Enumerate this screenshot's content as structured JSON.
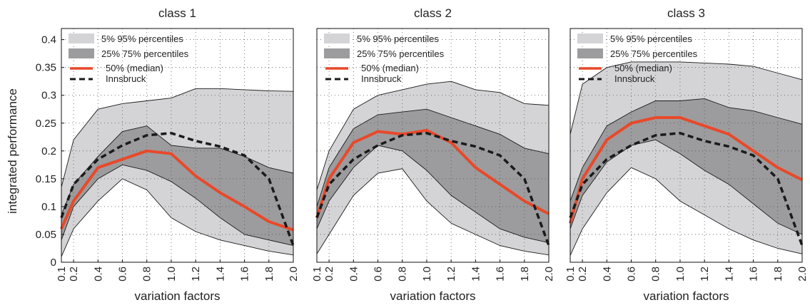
{
  "figure": {
    "ylabel": "integrated performance"
  },
  "legend": [
    {
      "label": "5% 95% percentiles",
      "swatch": "band-light"
    },
    {
      "label": "25% 75% percentiles",
      "swatch": "band-dark"
    },
    {
      "label": "50% (median)",
      "swatch": "median-line"
    },
    {
      "label": "Innsbruck",
      "swatch": "dashed-line"
    }
  ],
  "colors": {
    "band_outer": "#d4d4d6",
    "band_inner": "#9c9c9e",
    "median": "#e8492a",
    "innsbruck": "#1a1a1a",
    "grid": "#555555"
  },
  "chart_data": [
    {
      "type": "area",
      "title": "class 1",
      "xlabel": "variation factors",
      "ylabel": "integrated performance",
      "x": [
        0.1,
        0.2,
        0.4,
        0.6,
        0.8,
        1.0,
        1.2,
        1.4,
        1.6,
        1.8,
        2.0
      ],
      "xticks": [
        "0.1",
        "0.2",
        "0.4",
        "0.6",
        "0.8",
        "1.0",
        "1.2",
        "1.4",
        "1.6",
        "1.8",
        "2.0"
      ],
      "yticks": [
        "0",
        "0.05",
        "0.1",
        "0.15",
        "0.2",
        "0.25",
        "0.3",
        "0.35",
        "0.4"
      ],
      "xlim": [
        0.1,
        2.0
      ],
      "ylim": [
        0,
        0.42
      ],
      "grid": true,
      "legend_position": "top-left",
      "series": [
        {
          "name": "5% 95% percentiles",
          "lower": [
            0.01,
            0.06,
            0.11,
            0.15,
            0.13,
            0.08,
            0.055,
            0.04,
            0.03,
            0.02,
            0.013
          ],
          "upper": [
            0.135,
            0.22,
            0.275,
            0.285,
            0.29,
            0.295,
            0.312,
            0.312,
            0.31,
            0.308,
            0.307
          ]
        },
        {
          "name": "25% 75% percentiles",
          "lower": [
            0.04,
            0.1,
            0.15,
            0.175,
            0.165,
            0.145,
            0.115,
            0.08,
            0.05,
            0.04,
            0.03
          ],
          "upper": [
            0.085,
            0.14,
            0.19,
            0.235,
            0.245,
            0.21,
            0.205,
            0.205,
            0.19,
            0.17,
            0.16
          ]
        },
        {
          "name": "50% (median)",
          "values": [
            0.06,
            0.11,
            0.17,
            0.185,
            0.2,
            0.195,
            0.155,
            0.125,
            0.1,
            0.073,
            0.058
          ]
        },
        {
          "name": "Innsbruck",
          "values": [
            0.08,
            0.14,
            0.185,
            0.21,
            0.228,
            0.232,
            0.218,
            0.208,
            0.192,
            0.15,
            0.03
          ]
        }
      ]
    },
    {
      "type": "area",
      "title": "class 2",
      "xlabel": "variation factors",
      "x": [
        0.1,
        0.2,
        0.4,
        0.6,
        0.8,
        1.0,
        1.2,
        1.4,
        1.6,
        1.8,
        2.0
      ],
      "xticks": [
        "0.1",
        "0.2",
        "0.4",
        "0.6",
        "0.8",
        "1.0",
        "1.2",
        "1.4",
        "1.6",
        "1.8",
        "2.0"
      ],
      "xlim": [
        0.1,
        2.0
      ],
      "ylim": [
        0,
        0.42
      ],
      "grid": true,
      "legend_position": "top-left",
      "series": [
        {
          "name": "5% 95% percentiles",
          "lower": [
            0.015,
            0.05,
            0.12,
            0.16,
            0.168,
            0.11,
            0.07,
            0.05,
            0.03,
            0.02,
            0.013
          ],
          "upper": [
            0.13,
            0.2,
            0.275,
            0.3,
            0.31,
            0.32,
            0.325,
            0.31,
            0.305,
            0.285,
            0.282
          ]
        },
        {
          "name": "25% 75% percentiles",
          "lower": [
            0.06,
            0.11,
            0.17,
            0.21,
            0.2,
            0.165,
            0.12,
            0.09,
            0.06,
            0.045,
            0.035
          ],
          "upper": [
            0.1,
            0.17,
            0.24,
            0.265,
            0.27,
            0.275,
            0.26,
            0.245,
            0.23,
            0.205,
            0.195
          ]
        },
        {
          "name": "50% (median)",
          "values": [
            0.08,
            0.15,
            0.215,
            0.235,
            0.23,
            0.237,
            0.215,
            0.17,
            0.14,
            0.11,
            0.087
          ]
        },
        {
          "name": "Innsbruck",
          "values": [
            0.08,
            0.14,
            0.185,
            0.21,
            0.228,
            0.232,
            0.218,
            0.208,
            0.192,
            0.15,
            0.03
          ]
        }
      ]
    },
    {
      "type": "area",
      "title": "class 3",
      "xlabel": "variation factors",
      "x": [
        0.1,
        0.2,
        0.4,
        0.6,
        0.8,
        1.0,
        1.2,
        1.4,
        1.6,
        1.8,
        2.0
      ],
      "xticks": [
        "0.1",
        "0.2",
        "0.4",
        "0.6",
        "0.8",
        "1.0",
        "1.2",
        "1.4",
        "1.6",
        "1.8",
        "2.0"
      ],
      "xlim": [
        0.1,
        2.0
      ],
      "ylim": [
        0,
        0.42
      ],
      "grid": true,
      "legend_position": "top-left",
      "series": [
        {
          "name": "5% 95% percentiles",
          "lower": [
            0.012,
            0.06,
            0.125,
            0.17,
            0.15,
            0.11,
            0.085,
            0.06,
            0.04,
            0.025,
            0.015
          ],
          "upper": [
            0.23,
            0.32,
            0.35,
            0.36,
            0.36,
            0.36,
            0.358,
            0.356,
            0.352,
            0.34,
            0.328
          ]
        },
        {
          "name": "25% 75% percentiles",
          "lower": [
            0.06,
            0.12,
            0.18,
            0.21,
            0.22,
            0.195,
            0.165,
            0.14,
            0.105,
            0.07,
            0.05
          ],
          "upper": [
            0.11,
            0.17,
            0.245,
            0.27,
            0.29,
            0.29,
            0.294,
            0.278,
            0.272,
            0.26,
            0.248
          ]
        },
        {
          "name": "50% (median)",
          "values": [
            0.07,
            0.15,
            0.22,
            0.25,
            0.26,
            0.26,
            0.245,
            0.23,
            0.2,
            0.17,
            0.148
          ]
        },
        {
          "name": "Innsbruck",
          "values": [
            0.08,
            0.14,
            0.185,
            0.21,
            0.228,
            0.232,
            0.218,
            0.208,
            0.192,
            0.15,
            0.03
          ]
        }
      ]
    }
  ]
}
